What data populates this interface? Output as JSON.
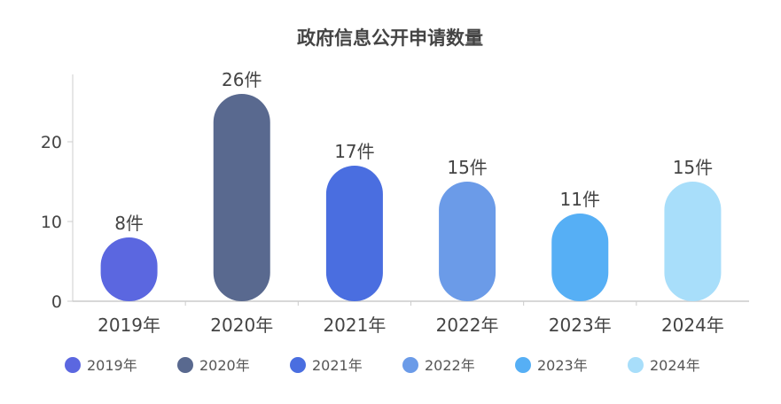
{
  "chart_data": {
    "type": "bar",
    "title": "政府信息公开申请数量",
    "categories": [
      "2019年",
      "2020年",
      "2021年",
      "2022年",
      "2023年",
      "2024年"
    ],
    "values": [
      8,
      26,
      17,
      15,
      11,
      15
    ],
    "data_labels": [
      "8件",
      "26件",
      "17件",
      "15件",
      "11件",
      "15件"
    ],
    "colors": [
      "#5b67e0",
      "#59698f",
      "#4a6ee0",
      "#6b9be8",
      "#56aff5",
      "#a8defa"
    ],
    "ylim": [
      0,
      26
    ],
    "yticks": [
      0,
      10,
      20
    ],
    "xlabel": "",
    "ylabel": "",
    "grid": false,
    "legend": {
      "position": "bottom",
      "entries": [
        "2019年",
        "2020年",
        "2021年",
        "2022年",
        "2023年",
        "2024年"
      ]
    }
  }
}
